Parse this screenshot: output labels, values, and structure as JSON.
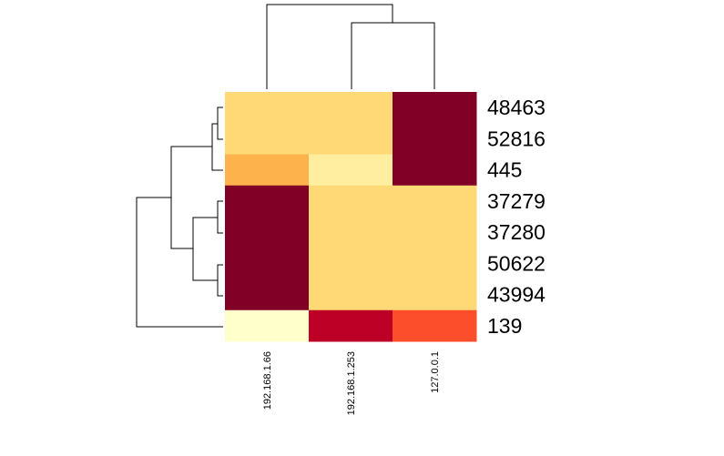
{
  "chart_data": {
    "type": "heatmap",
    "title": "",
    "xlabel": "",
    "ylabel": "",
    "columns": [
      "192.168.1.66",
      "192.168.1.253",
      "127.0.0.1"
    ],
    "rows": [
      "48463",
      "52816",
      "445",
      "37279",
      "37280",
      "50622",
      "43994",
      "139"
    ],
    "values": [
      [
        0.25,
        0.25,
        1.0
      ],
      [
        0.25,
        0.25,
        1.0
      ],
      [
        0.35,
        0.15,
        1.0
      ],
      [
        1.0,
        0.25,
        0.25
      ],
      [
        1.0,
        0.25,
        0.25
      ],
      [
        1.0,
        0.25,
        0.25
      ],
      [
        1.0,
        0.25,
        0.25
      ],
      [
        0.05,
        0.9,
        0.6
      ]
    ],
    "color_scale": [
      "#FFFFCC",
      "#FFEDA0",
      "#FED976",
      "#FEB24C",
      "#FD8D3C",
      "#FC4E2A",
      "#E31A1C",
      "#BD0026",
      "#800026"
    ],
    "row_dendrogram": true,
    "column_dendrogram": true
  }
}
